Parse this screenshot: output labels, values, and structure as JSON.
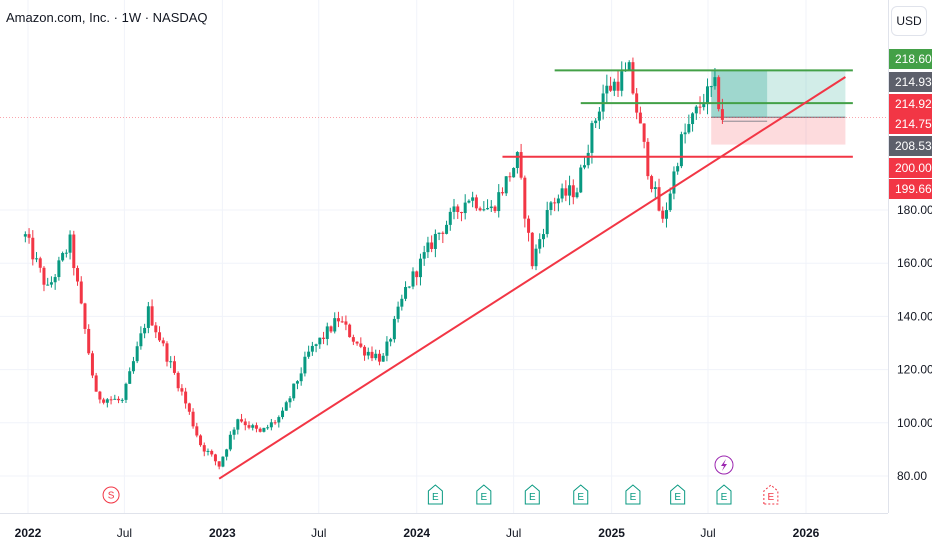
{
  "header": {
    "symbol_title": "Amazon.com, Inc. · 1W · NASDAQ",
    "currency": "USD"
  },
  "chart_data": {
    "type": "candlestick",
    "symbol": "Amazon.com, Inc.",
    "interval": "1W",
    "exchange": "NASDAQ",
    "currency": "USD",
    "y_ticks": [
      80,
      100,
      120,
      140,
      160,
      180
    ],
    "x_ticks": [
      {
        "label": "2022",
        "date": "2022-01-01"
      },
      {
        "label": "Jul",
        "date": "2022-07-01"
      },
      {
        "label": "2023",
        "date": "2023-01-01"
      },
      {
        "label": "Jul",
        "date": "2023-07-01"
      },
      {
        "label": "2024",
        "date": "2024-01-01"
      },
      {
        "label": "Jul",
        "date": "2024-07-01"
      },
      {
        "label": "2025",
        "date": "2025-01-01"
      },
      {
        "label": "Jul",
        "date": "2025-07-01"
      },
      {
        "label": "2026",
        "date": "2026-01-01"
      }
    ],
    "price_tags": [
      {
        "value": "218.60",
        "color": "#43a047"
      },
      {
        "value": "214.93",
        "color": "#5d606b"
      },
      {
        "value": "214.92",
        "color": "#f23645"
      },
      {
        "value": "214.75",
        "color": "#f23645"
      },
      {
        "value": "208.53",
        "color": "#5d606b"
      },
      {
        "value": "200.00",
        "color": "#f23645"
      },
      {
        "value": "199.66",
        "color": "#f23645"
      }
    ],
    "path_points": [
      [
        "2021-12-27",
        170
      ],
      [
        "2022-02-07",
        150
      ],
      [
        "2022-03-21",
        168
      ],
      [
        "2022-05-09",
        110
      ],
      [
        "2022-06-27",
        108
      ],
      [
        "2022-08-15",
        142
      ],
      [
        "2022-10-10",
        115
      ],
      [
        "2022-11-21",
        92
      ],
      [
        "2022-12-26",
        84
      ],
      [
        "2023-01-30",
        102
      ],
      [
        "2023-03-13",
        96
      ],
      [
        "2023-04-24",
        103
      ],
      [
        "2023-06-12",
        126
      ],
      [
        "2023-08-07",
        139
      ],
      [
        "2023-09-18",
        128
      ],
      [
        "2023-10-30",
        124
      ],
      [
        "2023-12-11",
        150
      ],
      [
        "2024-02-05",
        170
      ],
      [
        "2024-04-08",
        185
      ],
      [
        "2024-05-20",
        180
      ],
      [
        "2024-07-08",
        199
      ],
      [
        "2024-08-05",
        160
      ],
      [
        "2024-09-09",
        183
      ],
      [
        "2024-10-28",
        188
      ],
      [
        "2024-11-18",
        205
      ],
      [
        "2024-12-16",
        224
      ],
      [
        "2025-02-03",
        232
      ],
      [
        "2025-03-10",
        196
      ],
      [
        "2025-04-07",
        175
      ],
      [
        "2025-05-12",
        206
      ],
      [
        "2025-06-23",
        222
      ],
      [
        "2025-07-14",
        226
      ],
      [
        "2025-07-28",
        215
      ]
    ],
    "horizontal_levels": [
      {
        "name": "resistance-top",
        "price": 232.5,
        "color": "#43a047",
        "from": "2024-09-16",
        "to": "2026-03-30"
      },
      {
        "name": "resistance-mid",
        "price": 220.2,
        "color": "#43a047",
        "from": "2024-11-04",
        "to": "2026-03-30"
      },
      {
        "name": "support",
        "price": 200,
        "color": "#f23645",
        "from": "2024-06-10",
        "to": "2026-03-30"
      }
    ],
    "trendline": {
      "color": "#f23645",
      "from": [
        "2022-12-26",
        79
      ],
      "to": [
        "2026-03-16",
        230
      ]
    },
    "position_box": {
      "from": "2025-07-07",
      "to": "2026-03-16",
      "entry": 214.9,
      "target": 232.5,
      "stop": 204.6
    },
    "last_price_line": 214.75,
    "event_markers": [
      {
        "symbol": "S",
        "date": "2022-06-06",
        "kind": "split"
      },
      {
        "symbol": "E",
        "date": "2024-02-05",
        "kind": "earnings"
      },
      {
        "symbol": "E",
        "date": "2024-05-06",
        "kind": "earnings"
      },
      {
        "symbol": "E",
        "date": "2024-08-05",
        "kind": "earnings"
      },
      {
        "symbol": "E",
        "date": "2024-11-04",
        "kind": "earnings"
      },
      {
        "symbol": "E",
        "date": "2025-02-10",
        "kind": "earnings"
      },
      {
        "symbol": "E",
        "date": "2025-05-05",
        "kind": "earnings"
      },
      {
        "symbol": "E",
        "date": "2025-07-31",
        "kind": "earnings"
      },
      {
        "symbol": "E",
        "date": "2025-10-27",
        "kind": "upcoming earnings"
      }
    ],
    "dividends_icon": "lightning-bolt-icon",
    "colors": {
      "up": "#089981",
      "down": "#f23645",
      "grid": "#f0f3fa"
    }
  }
}
